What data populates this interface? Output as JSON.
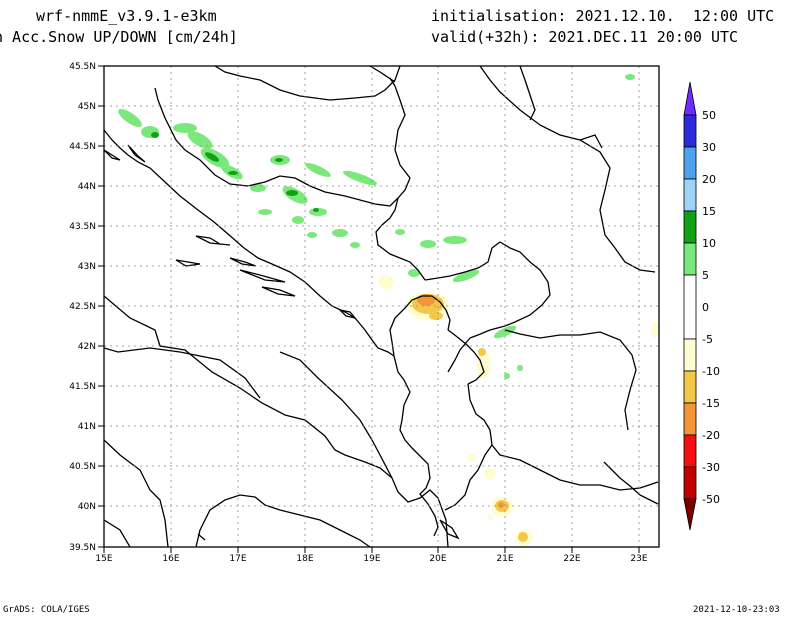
{
  "header": {
    "model": "wrf-nmmE_v3.9.1-e3km",
    "field": "n Acc.Snow UP/DOWN [cm/24h]",
    "init": "initialisation: 2021.12.10.  12:00 UTC",
    "valid": "valid(+32h): 2021.DEC.11 20:00 UTC"
  },
  "footer": {
    "credit": "GrADS: COLA/IGES",
    "timestamp": "2021-12-10-23:03"
  },
  "map": {
    "lat_labels": [
      "45.5N",
      "45N",
      "44.5N",
      "44N",
      "43.5N",
      "43N",
      "42.5N",
      "42N",
      "41.5N",
      "41N",
      "40.5N",
      "40N",
      "39.5N"
    ],
    "lon_labels": [
      "15E",
      "16E",
      "17E",
      "18E",
      "19E",
      "20E",
      "21E",
      "22E",
      "23E"
    ],
    "lat_range": [
      39.5,
      45.5
    ],
    "lon_range": [
      15.0,
      23.3
    ],
    "grid": true
  },
  "legend": {
    "labels": [
      "50",
      "30",
      "20",
      "15",
      "10",
      "5",
      "0",
      "-5",
      "-10",
      "-15",
      "-20",
      "-30",
      "-50"
    ],
    "colors": [
      "#6f2cff",
      "#2b2bd9",
      "#4fa3ee",
      "#9fd2f7",
      "#12a016",
      "#7ae87a",
      "#ffffff",
      "#fffcd0",
      "#f3c84a",
      "#f4953a",
      "#f41010",
      "#c00000",
      "#7a0000"
    ]
  }
}
